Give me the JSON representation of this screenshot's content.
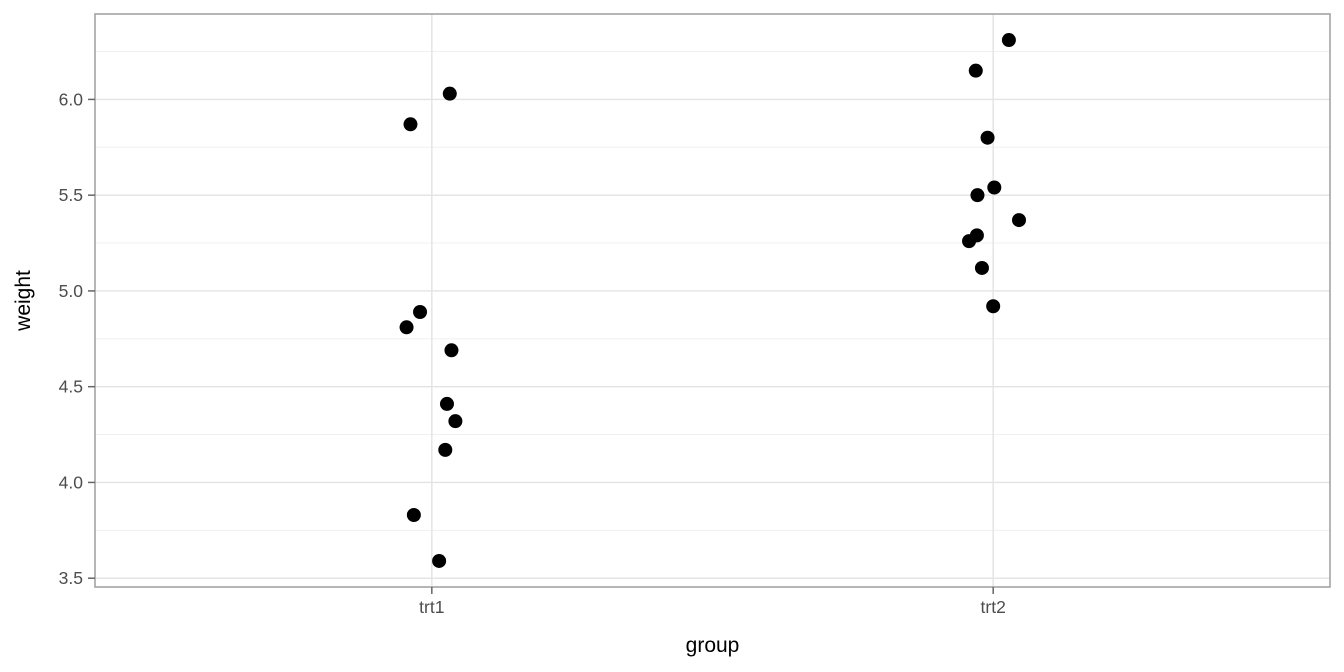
{
  "chart_data": {
    "type": "scatter",
    "title": "",
    "xlabel": "group",
    "ylabel": "weight",
    "categories": [
      "trt1",
      "trt2"
    ],
    "ylim": [
      3.454,
      6.446
    ],
    "y_major_ticks": [
      3.5,
      4.0,
      4.5,
      5.0,
      5.5,
      6.0
    ],
    "y_minor_gridlines": [
      3.75,
      4.25,
      4.75,
      5.25,
      5.75,
      6.25
    ],
    "grid": "horizontal major+minor; vertical major at category centers",
    "legend": "none",
    "point_style": {
      "shape": "circle",
      "radius_px": 7,
      "color": "#000000"
    },
    "series": [
      {
        "name": "trt1",
        "x_category": "trt1",
        "values": [
          4.81,
          4.17,
          4.41,
          3.59,
          5.87,
          3.83,
          6.03,
          4.89,
          4.32,
          4.69
        ],
        "jitter_x": [
          -0.045,
          0.024,
          0.027,
          0.013,
          -0.038,
          -0.032,
          0.032,
          -0.021,
          0.042,
          0.035
        ]
      },
      {
        "name": "trt2",
        "x_category": "trt2",
        "values": [
          6.31,
          5.12,
          5.54,
          5.5,
          5.37,
          5.29,
          4.92,
          6.15,
          5.8,
          5.26
        ],
        "jitter_x": [
          0.028,
          -0.02,
          0.002,
          -0.028,
          0.046,
          -0.029,
          0.0,
          -0.031,
          -0.01,
          -0.043
        ]
      }
    ],
    "colors": {
      "background": "#ffffff",
      "panel_background": "#ffffff",
      "panel_border": "#a3a3a3",
      "grid_major": "#e3e3e3",
      "grid_minor": "#f0f0f0",
      "axis_tick": "#666666",
      "tick_label": "#4d4d4d",
      "axis_title": "#000000",
      "point": "#000000"
    }
  }
}
